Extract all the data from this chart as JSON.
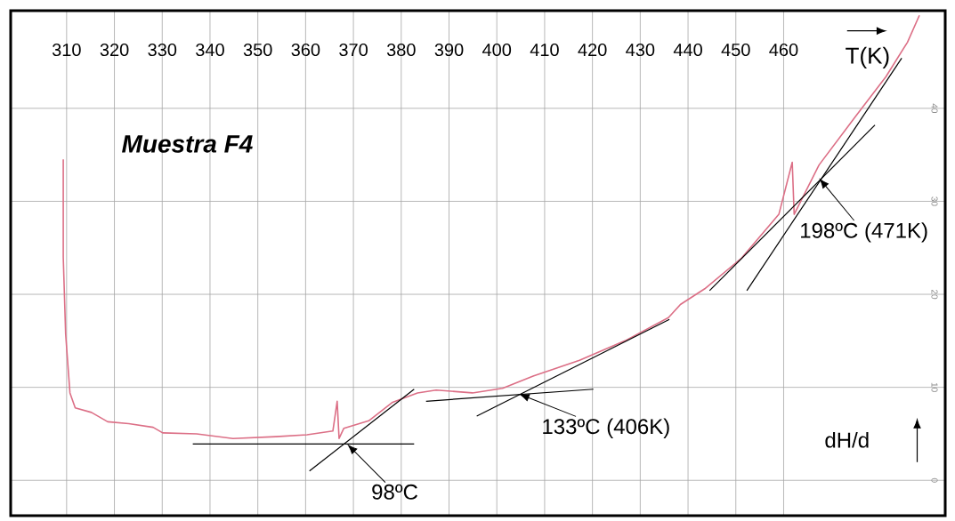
{
  "chart_data": {
    "type": "line",
    "xlabel": "T(K)",
    "ylabel": "dH/d",
    "xlim": [
      298.3,
      493.8
    ],
    "ylim": [
      -3.8,
      50.5
    ],
    "xticks": [
      310,
      320,
      330,
      340,
      350,
      360,
      370,
      380,
      390,
      400,
      410,
      420,
      430,
      440,
      450,
      460
    ],
    "yticks": [
      0,
      10,
      20,
      30,
      40
    ],
    "grid": true,
    "marker": "none",
    "line_style": "solid",
    "series": [
      {
        "color": "#dc6f86",
        "x": [
          309.3,
          309.3,
          309.8,
          310.7,
          311.8,
          315.2,
          318.6,
          323.0,
          328.1,
          330.1,
          337.2,
          344.8,
          353.8,
          360.3,
          365.7,
          366.6,
          367.0,
          368.0,
          373.2,
          378.2,
          383.4,
          387.3,
          394.9,
          401.2,
          407.6,
          417.3,
          426.8,
          435.9,
          438.4,
          443.5,
          451.2,
          459.0,
          461.8,
          462.2,
          467.4,
          475.0,
          481.4,
          485.9,
          488.4
        ],
        "values": [
          34.5,
          24,
          15.7,
          9.4,
          7.8,
          7.3,
          6.3,
          6.1,
          5.7,
          5.1,
          5.0,
          4.5,
          4.7,
          4.9,
          5.3,
          8.5,
          4.5,
          5.6,
          6.4,
          8.4,
          9.4,
          9.7,
          9.4,
          9.9,
          11.2,
          12.9,
          15.0,
          17.5,
          18.9,
          20.6,
          23.9,
          28.6,
          34.2,
          28.6,
          33.9,
          39.1,
          43.4,
          47.1,
          50.0
        ]
      },
      {
        "color": "#000000",
        "x": [
          336.4,
          382.7
        ],
        "values": [
          3.9,
          3.9
        ]
      },
      {
        "color": "#000000",
        "x": [
          360.8,
          382.7
        ],
        "values": [
          1.0,
          9.8
        ]
      },
      {
        "color": "#000000",
        "x": [
          385.2,
          420.2
        ],
        "values": [
          8.5,
          9.8
        ]
      },
      {
        "color": "#000000",
        "x": [
          395.8,
          436.1
        ],
        "values": [
          6.9,
          17.3
        ]
      },
      {
        "color": "#000000",
        "x": [
          444.5,
          479.1
        ],
        "values": [
          20.4,
          38.2
        ]
      },
      {
        "color": "#000000",
        "x": [
          452.3,
          484.7
        ],
        "values": [
          20.4,
          45.4
        ]
      }
    ],
    "annotations": [
      "Muestra F4",
      {
        "text": "98ºC",
        "x": 368.7,
        "y": 3.9
      },
      {
        "text": "133ºC (406K)",
        "x": 404.6,
        "y": 9.3
      },
      {
        "text": "198ºC (471K)",
        "x": 467.4,
        "y": 32.5
      }
    ]
  }
}
